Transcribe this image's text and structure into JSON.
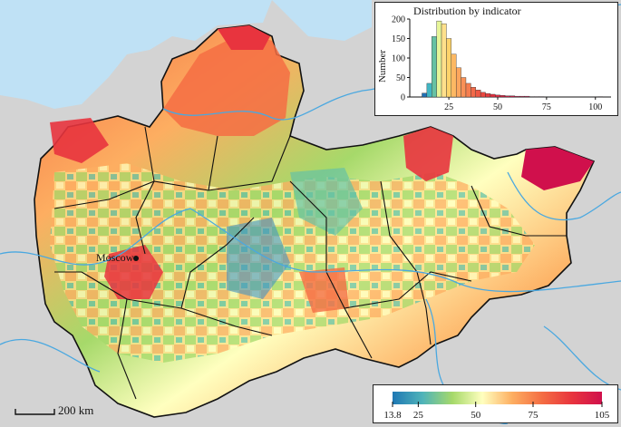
{
  "map": {
    "city_label": "Moscow",
    "scale_label": "200 km",
    "colors": {
      "water": "#bfe1f5",
      "outside": "#d3d3d3",
      "boundary": "#111111",
      "river": "#4aa8e0"
    }
  },
  "histogram": {
    "title": "Distribution by indicator",
    "ylabel": "Number",
    "x_ticks": [
      "25",
      "50",
      "75",
      "100"
    ],
    "y_ticks": [
      "0",
      "50",
      "100",
      "150",
      "200"
    ]
  },
  "legend": {
    "tick_labels": [
      "13.8",
      "25",
      "50",
      "75",
      "105"
    ],
    "colors": [
      "#1f78b4",
      "#4fb3b9",
      "#a6d96a",
      "#ffffbf",
      "#fdae61",
      "#f46d43",
      "#e8343e",
      "#d0104c"
    ]
  },
  "chart_data": {
    "type": "bar",
    "title": "Distribution by indicator",
    "xlabel": "",
    "ylabel": "Number",
    "xlim": [
      5,
      108
    ],
    "ylim": [
      0,
      200
    ],
    "x_ticks": [
      25,
      50,
      75,
      100
    ],
    "bin_width": 2.5,
    "bins": [
      {
        "x": 12.5,
        "value": 10,
        "color": "#2171b5"
      },
      {
        "x": 15.0,
        "value": 35,
        "color": "#41b6c4"
      },
      {
        "x": 17.5,
        "value": 155,
        "color": "#66c2a4"
      },
      {
        "x": 20.0,
        "value": 195,
        "color": "#e6f598"
      },
      {
        "x": 22.5,
        "value": 188,
        "color": "#fee08b"
      },
      {
        "x": 25.0,
        "value": 150,
        "color": "#fdd36a"
      },
      {
        "x": 27.5,
        "value": 110,
        "color": "#fdb863"
      },
      {
        "x": 30.0,
        "value": 75,
        "color": "#fca55d"
      },
      {
        "x": 32.5,
        "value": 50,
        "color": "#f99157"
      },
      {
        "x": 35.0,
        "value": 35,
        "color": "#f57d4f"
      },
      {
        "x": 37.5,
        "value": 25,
        "color": "#f26a49"
      },
      {
        "x": 40.0,
        "value": 18,
        "color": "#ee5844"
      },
      {
        "x": 42.5,
        "value": 12,
        "color": "#ea4840"
      },
      {
        "x": 45.0,
        "value": 9,
        "color": "#e63b3e"
      },
      {
        "x": 47.5,
        "value": 7,
        "color": "#e2303f"
      },
      {
        "x": 50.0,
        "value": 5,
        "color": "#de2740"
      },
      {
        "x": 52.5,
        "value": 4,
        "color": "#da2142"
      },
      {
        "x": 55.0,
        "value": 3,
        "color": "#d61c44"
      },
      {
        "x": 57.5,
        "value": 3,
        "color": "#d31846"
      },
      {
        "x": 60.0,
        "value": 2,
        "color": "#d01548"
      },
      {
        "x": 62.5,
        "value": 2,
        "color": "#cd134a"
      },
      {
        "x": 65.0,
        "value": 2,
        "color": "#cb124b"
      },
      {
        "x": 67.5,
        "value": 1,
        "color": "#c9114c"
      },
      {
        "x": 70.0,
        "value": 1,
        "color": "#c8104c"
      },
      {
        "x": 72.5,
        "value": 1,
        "color": "#c7104d"
      },
      {
        "x": 102.5,
        "value": 1,
        "color": "#c2104f"
      }
    ]
  }
}
